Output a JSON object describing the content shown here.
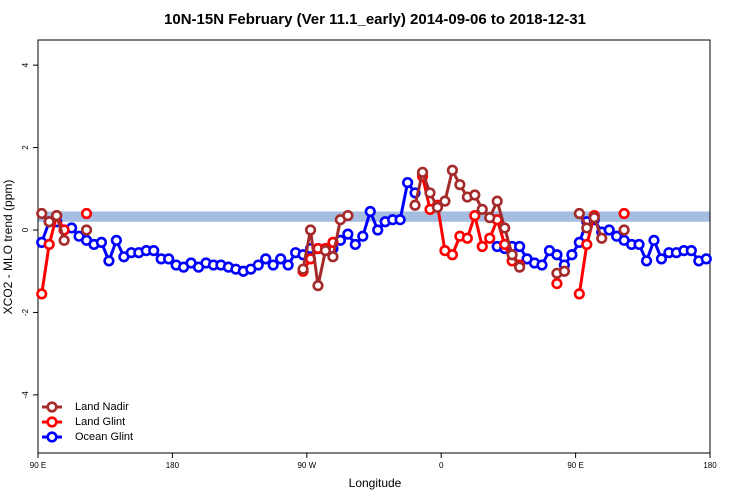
{
  "chart_data": {
    "type": "line",
    "title": "10N-15N February (Ver 11.1_early)   2014-09-06 to 2018-12-31",
    "x_label": "Longitude",
    "y_label": "XCO2 - MLO trend (ppm)",
    "xlim": [
      90,
      540
    ],
    "ylim": [
      -5.41,
      4.61
    ],
    "xticks": [
      {
        "value": 90,
        "label": "90 E"
      },
      {
        "value": 180,
        "label": "180"
      },
      {
        "value": 270,
        "label": "90 W"
      },
      {
        "value": 360,
        "label": "0"
      },
      {
        "value": 450,
        "label": "90 E"
      },
      {
        "value": 540,
        "label": "180"
      }
    ],
    "yticks": [
      -4,
      -2,
      0,
      2,
      4
    ],
    "band": {
      "range": [
        0.2,
        0.45
      ],
      "color": "#a4bde0"
    },
    "legend": "bottom-left",
    "x": [
      92.5,
      97.5,
      102.5,
      107.5,
      112.5,
      117.5,
      122.5,
      127.5,
      132.5,
      137.5,
      142.5,
      147.5,
      152.5,
      157.5,
      162.5,
      167.5,
      172.5,
      177.5,
      182.5,
      187.5,
      192.5,
      197.5,
      202.5,
      207.5,
      212.5,
      217.5,
      222.5,
      227.5,
      232.5,
      237.5,
      242.5,
      247.5,
      252.5,
      257.5,
      262.5,
      267.5,
      272.5,
      277.5,
      282.5,
      287.5,
      292.5,
      297.5,
      302.5,
      307.5,
      312.5,
      317.5,
      322.5,
      327.5,
      332.5,
      337.5,
      342.5,
      347.5,
      352.5,
      357.5,
      362.5,
      367.5,
      372.5,
      377.5,
      382.5,
      387.5,
      392.5,
      397.5,
      402.5,
      407.5,
      412.5,
      417.5,
      422.5,
      427.5,
      432.5,
      437.5,
      442.5,
      447.5,
      452.5,
      457.5,
      462.5,
      467.5,
      472.5,
      477.5,
      482.5,
      487.5,
      492.5,
      497.5,
      502.5,
      507.5,
      512.5,
      517.5,
      522.5,
      527.5,
      532.5,
      537.5
    ],
    "series": [
      {
        "name": "Land Nadir",
        "color": "#a52a2a",
        "values": [
          0.4,
          0.2,
          0.35,
          -0.25,
          null,
          null,
          0.0,
          null,
          null,
          null,
          null,
          null,
          null,
          null,
          null,
          null,
          null,
          null,
          null,
          null,
          null,
          null,
          null,
          null,
          null,
          null,
          null,
          null,
          null,
          null,
          null,
          null,
          null,
          null,
          null,
          -0.95,
          0.0,
          -1.35,
          -0.5,
          -0.65,
          0.25,
          0.35,
          null,
          null,
          null,
          null,
          null,
          null,
          null,
          null,
          0.6,
          1.4,
          0.9,
          0.55,
          0.7,
          1.45,
          1.1,
          0.8,
          0.85,
          0.5,
          0.3,
          0.7,
          0.05,
          -0.6,
          -0.9,
          null,
          null,
          null,
          null,
          -1.05,
          -1.0,
          null,
          0.4,
          0.05,
          0.3,
          -0.2,
          null,
          null,
          0.0,
          null,
          null,
          null,
          null,
          null,
          null,
          null,
          null,
          null,
          null,
          null
        ]
      },
      {
        "name": "Land Glint",
        "color": "#ff0000",
        "values": [
          -1.55,
          -0.35,
          0.35,
          0.0,
          null,
          null,
          0.4,
          null,
          null,
          null,
          null,
          null,
          null,
          null,
          null,
          null,
          null,
          null,
          null,
          null,
          null,
          null,
          null,
          null,
          null,
          null,
          null,
          null,
          null,
          null,
          null,
          null,
          null,
          null,
          null,
          -1.0,
          -0.7,
          -0.45,
          -0.45,
          -0.3,
          null,
          null,
          null,
          null,
          null,
          null,
          null,
          null,
          null,
          null,
          null,
          1.3,
          0.5,
          0.6,
          -0.5,
          -0.6,
          -0.15,
          -0.2,
          0.35,
          -0.4,
          -0.2,
          0.25,
          -0.35,
          -0.75,
          -0.85,
          null,
          null,
          null,
          null,
          -1.3,
          null,
          null,
          -1.55,
          -0.35,
          0.35,
          null,
          null,
          null,
          0.4,
          null,
          null,
          null,
          null,
          null,
          null,
          null,
          null,
          null,
          null,
          null
        ]
      },
      {
        "name": "Ocean Glint",
        "color": "#0000ff",
        "values": [
          -0.3,
          0.2,
          0.2,
          0.0,
          0.05,
          -0.15,
          -0.25,
          -0.35,
          -0.3,
          -0.75,
          -0.25,
          -0.65,
          -0.55,
          -0.55,
          -0.5,
          -0.5,
          -0.7,
          -0.7,
          -0.85,
          -0.9,
          -0.8,
          -0.9,
          -0.8,
          -0.85,
          -0.85,
          -0.9,
          -0.95,
          -1.0,
          -0.95,
          -0.85,
          -0.7,
          -0.85,
          -0.7,
          -0.85,
          -0.55,
          -0.6,
          -0.45,
          -0.45,
          -0.45,
          -0.45,
          -0.25,
          -0.1,
          -0.35,
          -0.15,
          0.45,
          0.0,
          0.2,
          0.25,
          0.25,
          1.15,
          0.9,
          null,
          null,
          null,
          null,
          null,
          null,
          null,
          null,
          null,
          null,
          -0.4,
          -0.45,
          -0.4,
          -0.4,
          -0.7,
          -0.8,
          -0.85,
          -0.5,
          -0.6,
          -0.85,
          -0.6,
          -0.3,
          0.2,
          0.25,
          -0.05,
          0.0,
          -0.15,
          -0.25,
          -0.35,
          -0.35,
          -0.75,
          -0.25,
          -0.7,
          -0.55,
          -0.55,
          -0.5,
          -0.5,
          -0.75,
          -0.7
        ]
      }
    ]
  }
}
